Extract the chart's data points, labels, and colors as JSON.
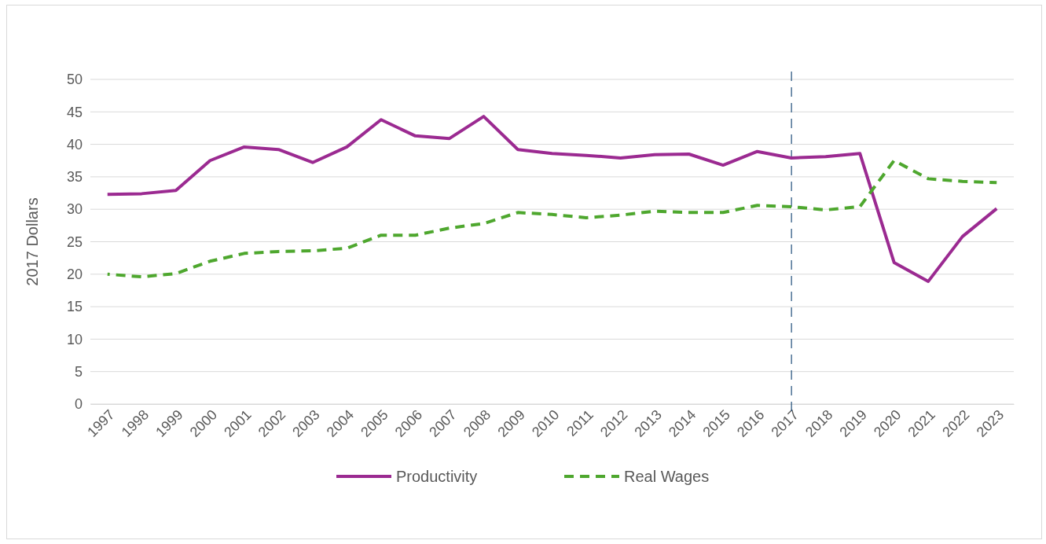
{
  "chart_data": {
    "type": "line",
    "ylabel": "2017  Dollars",
    "categories": [
      "1997",
      "1998",
      "1999",
      "2000",
      "2001",
      "2002",
      "2003",
      "2004",
      "2005",
      "2006",
      "2007",
      "2008",
      "2009",
      "2010",
      "2011",
      "2012",
      "2013",
      "2014",
      "2015",
      "2016",
      "2017",
      "2018",
      "2019",
      "2020",
      "2021",
      "2022",
      "2023"
    ],
    "series": [
      {
        "name": "Productivity",
        "color": "#9b2a91",
        "line_style": "solid",
        "values": [
          32.3,
          32.4,
          32.9,
          37.5,
          39.6,
          39.2,
          37.2,
          39.6,
          43.8,
          41.3,
          40.9,
          44.3,
          39.2,
          38.6,
          38.3,
          37.9,
          38.4,
          38.5,
          36.8,
          38.9,
          37.9,
          38.1,
          38.6,
          21.8,
          18.9,
          25.8,
          30.1
        ]
      },
      {
        "name": "Real Wages",
        "color": "#4ea72e",
        "line_style": "dashed",
        "values": [
          20.0,
          19.6,
          20.1,
          22.0,
          23.2,
          23.5,
          23.6,
          24.0,
          26.0,
          26.0,
          27.1,
          27.8,
          29.5,
          29.2,
          28.7,
          29.1,
          29.7,
          29.5,
          29.5,
          30.6,
          30.4,
          29.9,
          30.4,
          37.5,
          34.7,
          34.3,
          34.1
        ]
      }
    ],
    "ylim": [
      0,
      50
    ],
    "yticks": [
      0,
      5,
      10,
      15,
      20,
      25,
      30,
      35,
      40,
      45,
      50
    ],
    "grid": "y",
    "legend": "bottom",
    "marker": "none",
    "ref_lines": [
      {
        "axis": "x",
        "value": "2017",
        "color": "#1f4e79",
        "line_style": "dashed"
      }
    ]
  }
}
